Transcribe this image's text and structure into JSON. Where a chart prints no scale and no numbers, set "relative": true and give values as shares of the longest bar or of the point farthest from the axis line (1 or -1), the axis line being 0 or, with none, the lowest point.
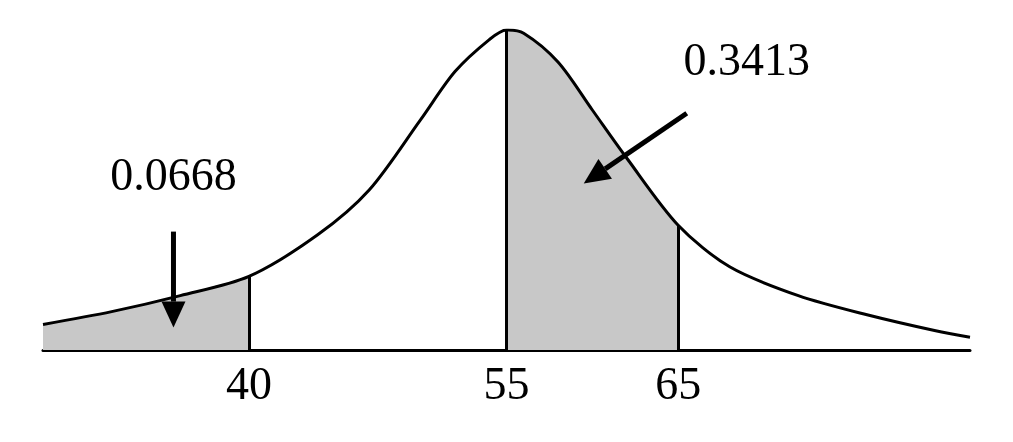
{
  "chart_data": {
    "type": "line",
    "relative": true,
    "xlim": [
      28,
      82
    ],
    "xticks": [
      40,
      55,
      65
    ],
    "grid": false,
    "marker": "none",
    "line_style": "solid",
    "series": [
      {
        "color": "#000000",
        "x": [
          28,
          32,
          36,
          40,
          44,
          47,
          50,
          52,
          54,
          55,
          56,
          58,
          60,
          62,
          65,
          68,
          72,
          76,
          80,
          82
        ],
        "values": [
          0.08,
          0.12,
          0.17,
          0.23,
          0.36,
          0.5,
          0.72,
          0.87,
          0.97,
          1,
          0.99,
          0.9,
          0.75,
          0.6,
          0.39,
          0.26,
          0.17,
          0.11,
          0.06,
          0.04
        ]
      },
      {
        "type": "area",
        "color": "#c8c8c8",
        "x": [
          28,
          32,
          36,
          40
        ],
        "values": [
          0.08,
          0.12,
          0.17,
          0.23
        ]
      },
      {
        "type": "area",
        "color": "#c8c8c8",
        "x": [
          55,
          56,
          58,
          60,
          62,
          65
        ],
        "values": [
          1,
          0.99,
          0.9,
          0.75,
          0.6,
          0.39
        ]
      }
    ],
    "ref_lines": [
      {
        "axis": "x",
        "value": 40,
        "color": "#000000"
      },
      {
        "axis": "x",
        "value": 55,
        "color": "#000000"
      },
      {
        "axis": "x",
        "value": 65,
        "color": "#000000"
      }
    ],
    "annotations": [
      "0.0668",
      "0.3413"
    ]
  }
}
